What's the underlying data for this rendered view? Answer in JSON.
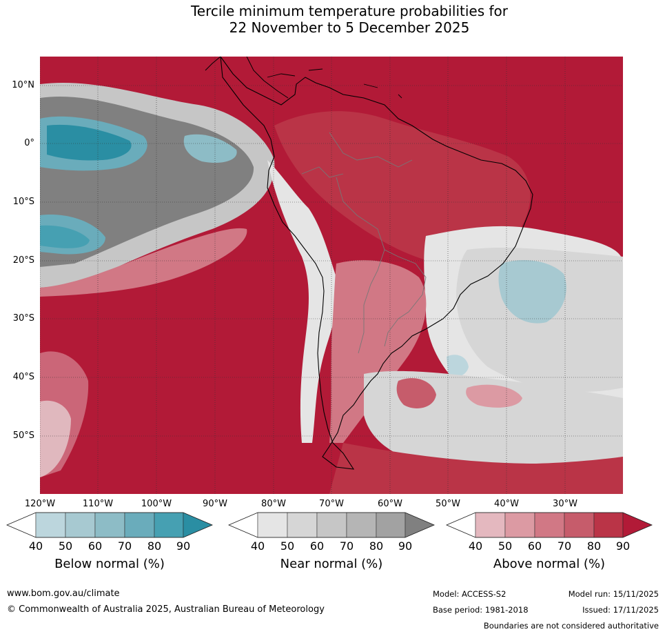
{
  "title": {
    "line1": "Tercile minimum temperature probabilities for",
    "line2": "22 November to 5 December 2025"
  },
  "axes": {
    "lat_labels": [
      "10°N",
      "0°",
      "10°S",
      "20°S",
      "30°S",
      "40°S",
      "50°S"
    ],
    "lon_labels": [
      "120°W",
      "110°W",
      "100°W",
      "90°W",
      "80°W",
      "70°W",
      "60°W",
      "50°W",
      "40°W",
      "30°W"
    ]
  },
  "legends": [
    {
      "title": "Below normal (%)",
      "ticks": [
        "40",
        "50",
        "60",
        "70",
        "80",
        "90"
      ],
      "colors": [
        "#ffffff",
        "#bcd6dd",
        "#a7c9d1",
        "#8dbcc6",
        "#6aacbb",
        "#46a0b2",
        "#2a8ea3"
      ]
    },
    {
      "title": "Near normal (%)",
      "ticks": [
        "40",
        "50",
        "60",
        "70",
        "80",
        "90"
      ],
      "colors": [
        "#ffffff",
        "#e5e5e5",
        "#d6d6d6",
        "#c6c6c6",
        "#b5b5b5",
        "#a2a2a2",
        "#808080"
      ]
    },
    {
      "title": "Above normal (%)",
      "ticks": [
        "40",
        "50",
        "60",
        "70",
        "80",
        "90"
      ],
      "colors": [
        "#ffffff",
        "#e4b8bf",
        "#dc9aa3",
        "#d17885",
        "#c65c6b",
        "#ba3447",
        "#b21a37"
      ]
    }
  ],
  "footer": {
    "website": "www.bom.gov.au/climate",
    "copyright": "© Commonwealth of Australia 2025, Australian Bureau of Meteorology",
    "model": "Model: ACCESS-S2",
    "base_period": "Base period: 1981-2018",
    "model_run": "Model run: 15/11/2025",
    "issued": "Issued: 17/11/2025",
    "disclaimer": "Boundaries are not considered authoritative"
  }
}
